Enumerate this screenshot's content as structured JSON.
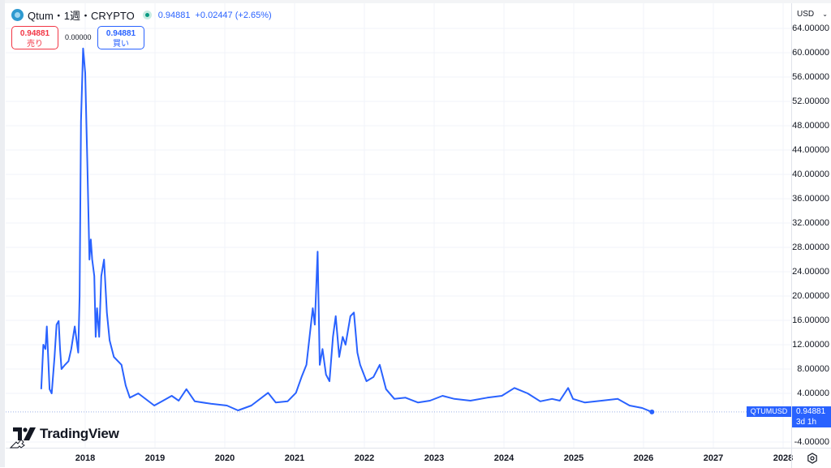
{
  "header": {
    "symbol": "Qtum",
    "interval": "1週",
    "exchange": "CRYPTO",
    "title": "Qtum・1週・CRYPTO",
    "price": "0.94881",
    "change": "+0.02447 (+2.65%)",
    "status": "market-open"
  },
  "trade": {
    "sell_price": "0.94881",
    "sell_label": "売り",
    "spread": "0.00000",
    "buy_price": "0.94881",
    "buy_label": "買い"
  },
  "currency": {
    "selected": "USD"
  },
  "branding": {
    "logo_text": "TradingView"
  },
  "last_price_tag": {
    "symbol": "QTUMUSD",
    "price": "0.94881",
    "countdown": "3d 1h"
  },
  "colors": {
    "line": "#2962ff",
    "sell": "#f23645",
    "buy": "#2962ff",
    "grid": "#f0f3fa",
    "positive": "#089981"
  },
  "chart_data": {
    "type": "line",
    "title": "Qtum・1週・CRYPTO",
    "xlabel": "",
    "ylabel": "USD",
    "ylim": [
      -4,
      64
    ],
    "grid": true,
    "legend": "none",
    "y_ticks": [
      "64.00000",
      "60.00000",
      "56.00000",
      "52.00000",
      "48.00000",
      "44.00000",
      "40.00000",
      "36.00000",
      "32.00000",
      "28.00000",
      "24.00000",
      "20.00000",
      "16.00000",
      "12.00000",
      "8.00000",
      "4.00000",
      "-4.00000"
    ],
    "x_ticks": [
      "2018",
      "2019",
      "2020",
      "2021",
      "2022",
      "2023",
      "2024",
      "2025",
      "2026",
      "2027",
      "2028"
    ],
    "series": [
      {
        "name": "QTUMUSD",
        "x": [
          2017.37,
          2017.4,
          2017.43,
          2017.45,
          2017.49,
          2017.52,
          2017.56,
          2017.59,
          2017.62,
          2017.64,
          2017.66,
          2017.71,
          2017.76,
          2017.8,
          2017.85,
          2017.9,
          2017.92,
          2017.94,
          2017.97,
          2018.0,
          2018.03,
          2018.06,
          2018.08,
          2018.1,
          2018.13,
          2018.15,
          2018.17,
          2018.2,
          2018.23,
          2018.27,
          2018.31,
          2018.35,
          2018.41,
          2018.47,
          2018.52,
          2018.58,
          2018.64,
          2018.76,
          2018.99,
          2019.1,
          2019.24,
          2019.34,
          2019.45,
          2019.57,
          2019.8,
          2020.03,
          2020.19,
          2020.38,
          2020.62,
          2020.73,
          2020.9,
          2021.02,
          2021.1,
          2021.17,
          2021.26,
          2021.29,
          2021.33,
          2021.36,
          2021.4,
          2021.45,
          2021.5,
          2021.55,
          2021.59,
          2021.64,
          2021.69,
          2021.73,
          2021.8,
          2021.85,
          2021.9,
          2021.94,
          2022.03,
          2022.13,
          2022.22,
          2022.31,
          2022.43,
          2022.59,
          2022.77,
          2022.94,
          2023.12,
          2023.29,
          2023.52,
          2023.76,
          2023.97,
          2024.15,
          2024.34,
          2024.52,
          2024.69,
          2024.8,
          2024.92,
          2024.99,
          2025.16,
          2025.4,
          2025.63,
          2025.8,
          2025.98,
          2026.12
        ],
        "values": [
          4.7,
          12.0,
          11.3,
          15.0,
          4.7,
          4.0,
          10.0,
          15.3,
          15.9,
          11.3,
          8.0,
          8.7,
          9.3,
          11.3,
          15.0,
          10.7,
          20.0,
          48.7,
          60.7,
          56.7,
          42.0,
          26.0,
          29.3,
          26.0,
          23.3,
          13.3,
          18.0,
          13.3,
          23.3,
          26.0,
          17.3,
          12.7,
          10.0,
          9.3,
          8.7,
          5.3,
          3.3,
          4.0,
          2.0,
          2.7,
          3.6,
          2.8,
          4.7,
          2.7,
          2.3,
          2.0,
          1.2,
          2.0,
          4.1,
          2.5,
          2.7,
          4.1,
          6.7,
          8.7,
          18.0,
          15.3,
          27.3,
          8.7,
          11.3,
          7.1,
          6.0,
          13.3,
          16.7,
          10.0,
          13.3,
          12.0,
          16.7,
          17.3,
          10.7,
          8.7,
          6.0,
          6.7,
          8.7,
          4.7,
          3.1,
          3.3,
          2.5,
          2.8,
          3.6,
          3.1,
          2.8,
          3.3,
          3.6,
          4.9,
          4.0,
          2.7,
          3.1,
          2.8,
          4.9,
          3.1,
          2.5,
          2.8,
          3.1,
          2.0,
          1.6,
          0.95
        ]
      }
    ]
  }
}
